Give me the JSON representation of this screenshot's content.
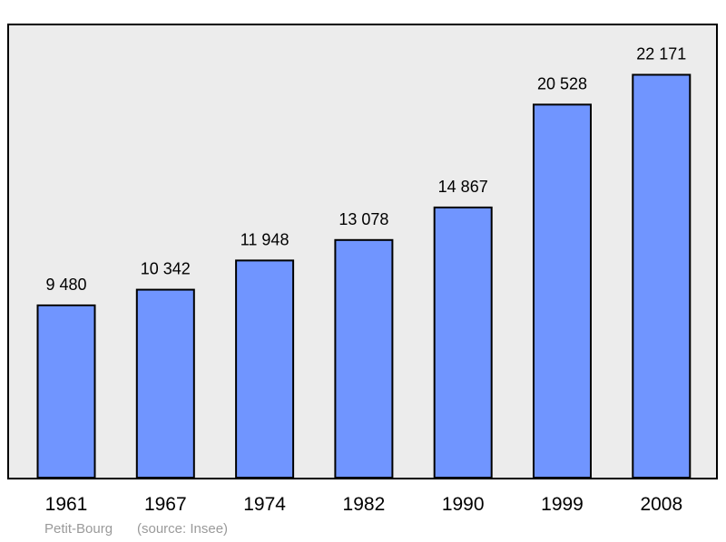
{
  "chart_data": {
    "type": "bar",
    "categories": [
      "1961",
      "1967",
      "1974",
      "1982",
      "1990",
      "1999",
      "2008"
    ],
    "values": [
      9480,
      10342,
      11948,
      13078,
      14867,
      20528,
      22171
    ],
    "value_labels": [
      "9 480",
      "10 342",
      "11 948",
      "13 078",
      "14 867",
      "20 528",
      "22 171"
    ],
    "title": "",
    "xlabel": "",
    "ylabel": "",
    "ylim": [
      0,
      23600
    ],
    "grid": false,
    "legend": "none"
  },
  "footer": {
    "place": "Petit-Bourg",
    "source": "(source: Insee)"
  },
  "colors": {
    "plot_background": "#ececec",
    "bar_fill": "#7095ff",
    "bar_stroke": "#000000",
    "footer_text": "#9a9a9a"
  }
}
